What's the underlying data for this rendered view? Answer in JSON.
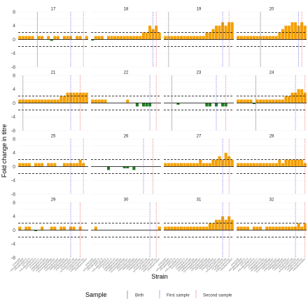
{
  "chart_data": {
    "type": "bar",
    "xlabel": "Strain",
    "ylabel": "Fold change in titre",
    "ylim": [
      -8,
      8
    ],
    "yticks": [
      -8,
      -4,
      -2,
      0,
      2,
      4,
      6,
      8
    ],
    "threshold_lines": [
      2,
      -2
    ],
    "strain_count": 22,
    "strain_labels": [
      "A/HK/1/68",
      "A/England/878/69",
      "A/England/42/72",
      "A/PC/1/73",
      "A/Scotland/840/74",
      "A/Victoria/3/75",
      "A/Texas/1/77",
      "A/Bangkok/1/79",
      "A/Philippines/2/82",
      "A/Mississippi/1/85",
      "A/Leningrad/360/86",
      "A/Sichuan/2/87",
      "A/Shanghai/11/87",
      "A/Beijing/353/89",
      "A/Beijing/32/92",
      "A/Wuhan/359/95",
      "A/Sydney/5/97",
      "A/Panama/2007/99",
      "A/Fujian/411/02",
      "A/California/7/04",
      "A/Wisconsin/67/05",
      "A/Brisbane/10/07"
    ],
    "legend": {
      "title": "Sample",
      "entries": [
        {
          "label": "Birth",
          "color": "#9e9e9e"
        },
        {
          "label": "First sample",
          "color": "#5e5ee8"
        },
        {
          "label": "Second sample",
          "color": "#e85e5e"
        }
      ],
      "position": "bottom"
    },
    "colors": {
      "positive": "#f5a000",
      "negative": "#1e7a1e",
      "zero_line": "#000000"
    },
    "panels": [
      {
        "label": "17",
        "birth": 6,
        "first": 16.5,
        "second": 20.5,
        "values": [
          1,
          1,
          1,
          1,
          1,
          0,
          1,
          1,
          0,
          1,
          -0.4,
          1,
          1,
          0,
          1,
          1,
          1,
          0,
          1,
          1,
          0,
          1
        ]
      },
      {
        "label": "18",
        "birth": null,
        "first": 19.5,
        "second": 20.5,
        "values": [
          -0.3,
          1,
          1,
          1,
          0,
          1,
          1,
          1,
          1,
          1,
          1,
          1,
          1,
          1,
          1,
          1,
          2,
          2,
          4,
          3,
          4,
          2
        ]
      },
      {
        "label": "19",
        "birth": 1.5,
        "first": 18.5,
        "second": 20.5,
        "values": [
          1,
          1,
          1,
          1,
          1,
          1,
          1,
          1,
          1,
          1,
          1,
          1,
          1,
          2,
          2,
          3,
          4,
          4,
          5,
          4,
          5,
          5
        ]
      },
      {
        "label": "20",
        "birth": 7.5,
        "first": 19.5,
        "second": 20.5,
        "values": [
          1,
          1,
          1,
          1,
          1,
          1,
          1,
          1,
          1,
          1,
          1,
          1,
          1,
          2,
          3,
          4,
          4,
          5,
          5,
          4,
          5,
          4
        ]
      },
      {
        "label": "21",
        "birth": 1.5,
        "first": 16.5,
        "second": 19.5,
        "values": [
          1,
          1,
          1,
          1,
          1,
          1,
          1,
          1,
          1,
          1,
          1,
          1,
          1,
          2,
          2,
          3,
          3,
          3,
          3,
          3,
          3,
          3
        ]
      },
      {
        "label": "22",
        "birth": null,
        "first": 18.5,
        "second": 20.5,
        "values": [
          1,
          1,
          1,
          1,
          1,
          0,
          0,
          0,
          0,
          0,
          0,
          1,
          0,
          0,
          -1,
          0,
          -1,
          -1,
          -1,
          0,
          0,
          0
        ]
      },
      {
        "label": "23",
        "birth": 2.5,
        "first": 16.5,
        "second": 19.5,
        "values": [
          0,
          0,
          0,
          0,
          -0.5,
          0,
          0,
          0,
          0,
          0,
          0,
          0,
          0,
          -1,
          -1,
          0,
          -1,
          0,
          -1,
          -1,
          0,
          0
        ]
      },
      {
        "label": "24",
        "birth": 6,
        "first": 18.5,
        "second": 21.5,
        "values": [
          1,
          1,
          1,
          1,
          1,
          -0.3,
          1,
          1,
          1,
          1,
          1,
          1,
          1,
          1,
          1,
          2,
          2,
          3,
          3,
          4,
          4,
          3
        ]
      },
      {
        "label": "25",
        "birth": null,
        "first": 16.5,
        "second": 20.5,
        "values": [
          1,
          1,
          1,
          1,
          0,
          1,
          1,
          1,
          0,
          1,
          1,
          1,
          0,
          0,
          1,
          1,
          1,
          1,
          1,
          2,
          1,
          0
        ]
      },
      {
        "label": "26",
        "birth": null,
        "first": 16.5,
        "second": 19.5,
        "values": [
          0,
          0,
          0,
          0,
          0,
          -1,
          0,
          0,
          0,
          0,
          -0.5,
          -0.5,
          0,
          -1,
          0,
          0,
          0,
          0,
          0,
          0,
          0,
          0
        ]
      },
      {
        "label": "27",
        "birth": null,
        "first": 18.5,
        "second": 20.5,
        "values": [
          1,
          1,
          1,
          1,
          1,
          1,
          1,
          1,
          1,
          1,
          1,
          2,
          1,
          1,
          1,
          2,
          2,
          3,
          2,
          4,
          3,
          2
        ]
      },
      {
        "label": "28",
        "birth": null,
        "first": 18.5,
        "second": 21.5,
        "values": [
          1,
          1,
          1,
          1,
          1,
          1,
          1,
          1,
          1,
          1,
          1,
          1,
          1,
          2,
          1,
          2,
          2,
          2,
          2,
          2,
          2,
          1
        ]
      },
      {
        "label": "29",
        "birth": null,
        "first": 16.5,
        "second": 19.5,
        "values": [
          1,
          0,
          1,
          1,
          0,
          -0.3,
          0,
          1,
          0,
          0,
          1,
          1,
          0,
          1,
          1,
          0,
          1,
          1,
          0,
          1,
          0,
          0
        ]
      },
      {
        "label": "30",
        "birth": null,
        "first": 18.5,
        "second": 20.5,
        "values": [
          0,
          1,
          0,
          0,
          0,
          0,
          0,
          0,
          0,
          0,
          0,
          0,
          0,
          0,
          0,
          0,
          0,
          0,
          0,
          0,
          0,
          1
        ]
      },
      {
        "label": "31",
        "birth": null,
        "first": 18.5,
        "second": 20.5,
        "values": [
          1,
          1,
          1,
          1,
          1,
          1,
          1,
          1,
          1,
          1,
          1,
          1,
          1,
          1,
          2,
          2,
          3,
          3,
          4,
          3,
          4,
          3
        ]
      },
      {
        "label": "32",
        "birth": null,
        "first": 18.5,
        "second": 21.5,
        "values": [
          1,
          1,
          1,
          1,
          0,
          1,
          1,
          1,
          0,
          1,
          1,
          1,
          1,
          1,
          1,
          1,
          1,
          1,
          1,
          2,
          1,
          2
        ]
      }
    ]
  }
}
